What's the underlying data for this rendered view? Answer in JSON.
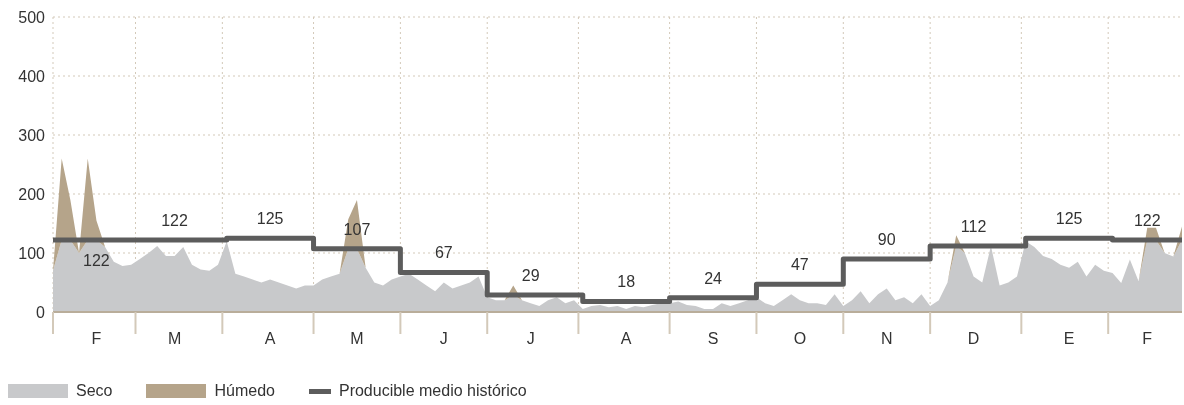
{
  "chart_data": {
    "type": "area",
    "stacked": true,
    "categories": [
      null,
      null,
      null,
      null,
      null,
      "F",
      null,
      null,
      null,
      null,
      null,
      null,
      null,
      null,
      "M",
      null,
      null,
      null,
      null,
      null,
      null,
      null,
      null,
      null,
      null,
      "A",
      null,
      null,
      null,
      null,
      null,
      null,
      null,
      null,
      null,
      "M",
      null,
      null,
      null,
      null,
      null,
      null,
      null,
      null,
      null,
      "J",
      null,
      null,
      null,
      null,
      null,
      null,
      null,
      null,
      null,
      "J",
      null,
      null,
      null,
      null,
      null,
      null,
      null,
      null,
      null,
      null,
      "A",
      null,
      null,
      null,
      null,
      null,
      null,
      null,
      null,
      null,
      "S",
      null,
      null,
      null,
      null,
      null,
      null,
      null,
      null,
      null,
      "O",
      null,
      null,
      null,
      null,
      null,
      null,
      null,
      null,
      null,
      "N",
      null,
      null,
      null,
      null,
      null,
      null,
      null,
      null,
      null,
      "D",
      null,
      null,
      null,
      null,
      null,
      null,
      null,
      null,
      null,
      null,
      "E",
      null,
      null,
      null,
      null,
      null,
      null,
      null,
      null,
      "F",
      null,
      null,
      null,
      null
    ],
    "series": [
      {
        "name": "Seco",
        "color": "#c8c9cb",
        "values": [
          70,
          122,
          122,
          100,
          122,
          122,
          110,
          85,
          78,
          80,
          90,
          100,
          112,
          95,
          95,
          110,
          80,
          72,
          70,
          80,
          120,
          65,
          60,
          55,
          50,
          55,
          50,
          45,
          40,
          45,
          45,
          55,
          60,
          65,
          107,
          107,
          75,
          50,
          45,
          55,
          60,
          65,
          55,
          45,
          35,
          50,
          40,
          45,
          50,
          60,
          25,
          20,
          20,
          29,
          20,
          15,
          10,
          20,
          25,
          15,
          20,
          5,
          10,
          12,
          8,
          10,
          5,
          10,
          8,
          12,
          15,
          15,
          18,
          12,
          10,
          5,
          5,
          15,
          10,
          15,
          20,
          25,
          15,
          10,
          20,
          30,
          20,
          15,
          15,
          12,
          30,
          10,
          20,
          35,
          15,
          30,
          40,
          20,
          25,
          15,
          30,
          10,
          20,
          50,
          112,
          100,
          60,
          50,
          112,
          45,
          50,
          60,
          120,
          110,
          95,
          90,
          80,
          75,
          85,
          60,
          80,
          70,
          66,
          49,
          89,
          52,
          122,
          122,
          100,
          94,
          122
        ]
      },
      {
        "name": "Húmedo",
        "color": "#b5a48a",
        "values": [
          0,
          138,
          68,
          0,
          138,
          33,
          0,
          0,
          0,
          0,
          0,
          0,
          0,
          0,
          0,
          0,
          0,
          0,
          0,
          0,
          0,
          0,
          0,
          0,
          0,
          0,
          0,
          0,
          0,
          0,
          0,
          0,
          0,
          0,
          50,
          83,
          0,
          0,
          0,
          0,
          0,
          0,
          0,
          0,
          0,
          0,
          0,
          0,
          0,
          0,
          0,
          0,
          0,
          16,
          0,
          0,
          0,
          0,
          0,
          0,
          0,
          0,
          0,
          0,
          0,
          0,
          0,
          0,
          0,
          0,
          0,
          0,
          0,
          0,
          0,
          0,
          0,
          0,
          0,
          0,
          0,
          0,
          0,
          0,
          0,
          0,
          0,
          0,
          0,
          0,
          0,
          0,
          0,
          0,
          0,
          0,
          0,
          0,
          0,
          0,
          0,
          0,
          0,
          0,
          18,
          0,
          0,
          0,
          0,
          0,
          0,
          0,
          0,
          0,
          0,
          0,
          0,
          0,
          0,
          0,
          0,
          0,
          0,
          0,
          0,
          0,
          21,
          21,
          0,
          0,
          23
        ]
      },
      {
        "name": "Producible medio histórico",
        "type": "step",
        "color": "#5c5c5c",
        "values": [
          122,
          122,
          122,
          122,
          122,
          122,
          122,
          122,
          122,
          122,
          122,
          122,
          122,
          122,
          122,
          122,
          122,
          122,
          122,
          122,
          125,
          125,
          125,
          125,
          125,
          125,
          125,
          125,
          125,
          125,
          107,
          107,
          107,
          107,
          107,
          107,
          107,
          107,
          107,
          107,
          67,
          67,
          67,
          67,
          67,
          67,
          67,
          67,
          67,
          67,
          29,
          29,
          29,
          29,
          29,
          29,
          29,
          29,
          29,
          29,
          29,
          18,
          18,
          18,
          18,
          18,
          18,
          18,
          18,
          18,
          18,
          24,
          24,
          24,
          24,
          24,
          24,
          24,
          24,
          24,
          24,
          47,
          47,
          47,
          47,
          47,
          47,
          47,
          47,
          47,
          47,
          90,
          90,
          90,
          90,
          90,
          90,
          90,
          90,
          90,
          90,
          112,
          112,
          112,
          112,
          112,
          112,
          112,
          112,
          112,
          112,
          112,
          125,
          125,
          125,
          125,
          125,
          125,
          125,
          125,
          125,
          125,
          122,
          122,
          122,
          122,
          122,
          122,
          122,
          122,
          122
        ],
        "value_labels": [
          null,
          null,
          null,
          null,
          null,
          "122",
          null,
          null,
          null,
          null,
          null,
          null,
          null,
          null,
          "122",
          null,
          null,
          null,
          null,
          null,
          null,
          null,
          null,
          null,
          null,
          "125",
          null,
          null,
          null,
          null,
          null,
          null,
          null,
          null,
          null,
          "107",
          null,
          null,
          null,
          null,
          null,
          null,
          null,
          null,
          null,
          "67",
          null,
          null,
          null,
          null,
          null,
          null,
          null,
          null,
          null,
          "29",
          null,
          null,
          null,
          null,
          null,
          null,
          null,
          null,
          null,
          null,
          "18",
          null,
          null,
          null,
          null,
          null,
          null,
          null,
          null,
          null,
          "24",
          null,
          null,
          null,
          null,
          null,
          null,
          null,
          null,
          null,
          "47",
          null,
          null,
          null,
          null,
          null,
          null,
          null,
          null,
          null,
          "90",
          null,
          null,
          null,
          null,
          null,
          null,
          null,
          null,
          null,
          "112",
          null,
          null,
          null,
          null,
          null,
          null,
          null,
          null,
          null,
          null,
          "125",
          null,
          null,
          null,
          null,
          null,
          null,
          null,
          null,
          "122",
          null,
          null,
          null,
          null
        ]
      }
    ],
    "ylim": [
      0,
      500
    ],
    "yticks": [
      0,
      100,
      200,
      300,
      400,
      500
    ],
    "grid": true,
    "legend": "bottom left"
  }
}
